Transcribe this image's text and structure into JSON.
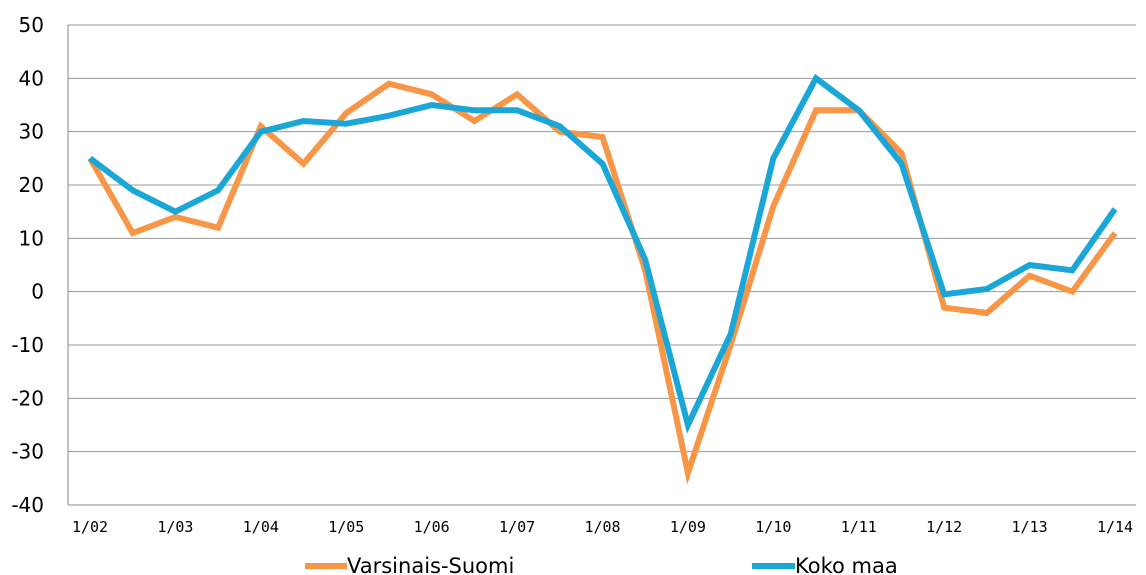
{
  "chart_data": {
    "type": "line",
    "title": "",
    "xlabel": "",
    "ylabel": "",
    "ylim": [
      -40,
      50
    ],
    "yticks": [
      50,
      40,
      30,
      20,
      10,
      0,
      -10,
      -20,
      -30,
      -40
    ],
    "x_tick_labels": [
      "1/02",
      "1/03",
      "1/04",
      "1/05",
      "1/06",
      "1/07",
      "1/08",
      "1/09",
      "1/10",
      "1/11",
      "1/12",
      "1/13",
      "1/14"
    ],
    "grid": true,
    "legend_position": "bottom",
    "series": [
      {
        "name": "Varsinais-Suomi",
        "color": "#f79646",
        "values": [
          25,
          11,
          14,
          12,
          31,
          24,
          33.5,
          39,
          37,
          32,
          37,
          30,
          29,
          4,
          -34,
          -10,
          16,
          34,
          34,
          26,
          -3,
          -4,
          3,
          0,
          11
        ]
      },
      {
        "name": "Koko maa",
        "color": "#1aa7d8",
        "values": [
          25,
          19,
          15,
          19,
          30,
          32,
          31.5,
          33,
          35,
          34,
          34,
          31,
          24,
          6,
          -25,
          -8,
          25,
          40,
          34,
          24,
          -0.5,
          0.5,
          5,
          4,
          15.5
        ]
      }
    ]
  }
}
